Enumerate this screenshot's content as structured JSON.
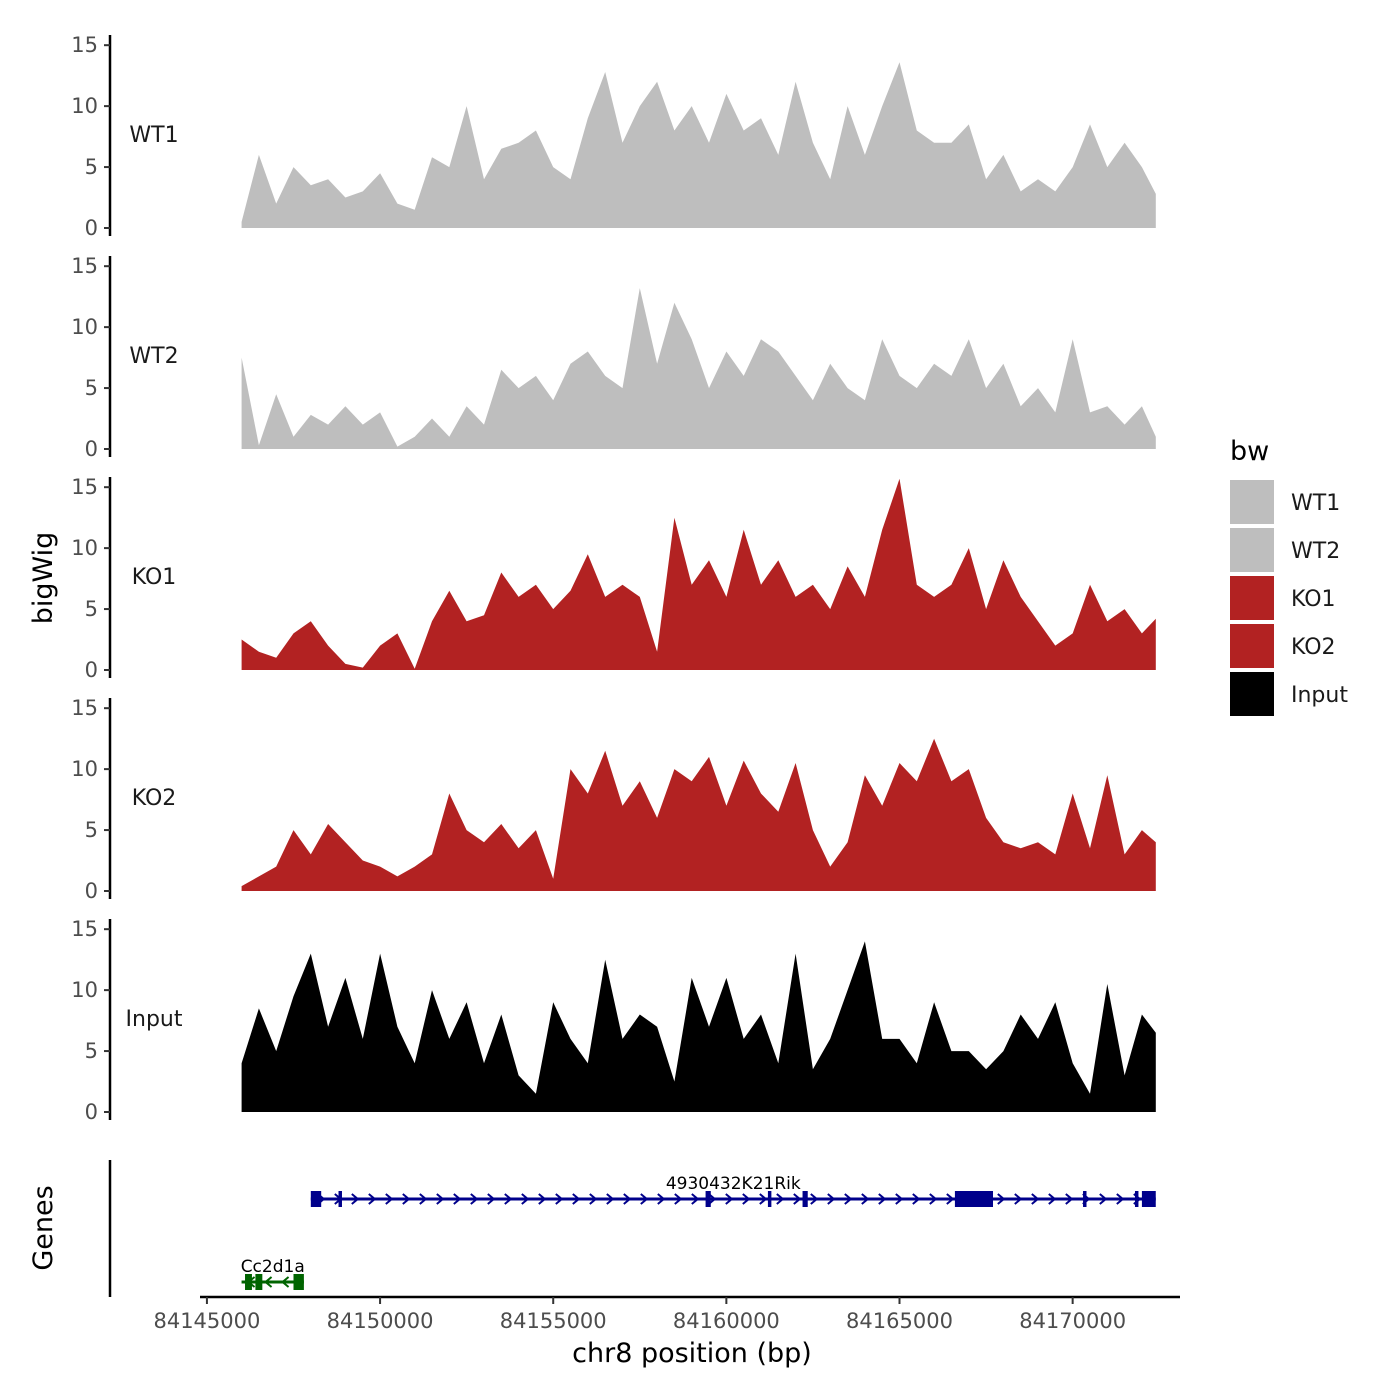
{
  "chart_data": {
    "type": "area",
    "chromosome": "chr8",
    "xlabel": "chr8 position (bp)",
    "ylabel_tracks": "bigWig",
    "ylabel_genes": "Genes",
    "xlim": [
      84144800,
      84173100
    ],
    "x_ticks": [
      84145000,
      84150000,
      84155000,
      84160000,
      84165000,
      84170000
    ],
    "x_tick_labels": [
      "84145000",
      "84150000",
      "84155000",
      "84160000",
      "84165000",
      "84170000"
    ],
    "ylim": [
      0,
      16
    ],
    "y_ticks": [
      0,
      5,
      10,
      15
    ],
    "y_tick_labels": [
      "0",
      "5",
      "10",
      "15"
    ],
    "legend": {
      "title": "bw",
      "entries": [
        {
          "label": "WT1",
          "color": "#bebebe"
        },
        {
          "label": "WT2",
          "color": "#bebebe"
        },
        {
          "label": "KO1",
          "color": "#b22222"
        },
        {
          "label": "KO2",
          "color": "#b22222"
        },
        {
          "label": "Input",
          "color": "#000000"
        }
      ]
    },
    "tracks": [
      {
        "name": "WT1",
        "color": "#bebebe",
        "x": [
          84146000,
          84146500,
          84147000,
          84147500,
          84148000,
          84148500,
          84149000,
          84149500,
          84150000,
          84150500,
          84151000,
          84151500,
          84152000,
          84152500,
          84153000,
          84153500,
          84154000,
          84154500,
          84155000,
          84155500,
          84156000,
          84156500,
          84157000,
          84157500,
          84158000,
          84158500,
          84159000,
          84159500,
          84160000,
          84160500,
          84161000,
          84161500,
          84162000,
          84162500,
          84163000,
          84163500,
          84164000,
          84164500,
          84165000,
          84165500,
          84166000,
          84166500,
          84167000,
          84167500,
          84168000,
          84168500,
          84169000,
          84169500,
          84170000,
          84170500,
          84171000,
          84171500,
          84172000,
          84172400
        ],
        "values": [
          0.5,
          6,
          2,
          5,
          3.5,
          4,
          2.5,
          3,
          4.5,
          2,
          1.5,
          5.8,
          5,
          10,
          4,
          6.5,
          7,
          8,
          5,
          4,
          9,
          12.8,
          7,
          10,
          12,
          8,
          10,
          7,
          11,
          8,
          9,
          6,
          12,
          7,
          4,
          10,
          6,
          10,
          13.6,
          8,
          7,
          7,
          8.5,
          4,
          6,
          3,
          4,
          3,
          5,
          8.5,
          5,
          7,
          5,
          2.8
        ]
      },
      {
        "name": "WT2",
        "color": "#bebebe",
        "x": [
          84146000,
          84146500,
          84147000,
          84147500,
          84148000,
          84148500,
          84149000,
          84149500,
          84150000,
          84150500,
          84151000,
          84151500,
          84152000,
          84152500,
          84153000,
          84153500,
          84154000,
          84154500,
          84155000,
          84155500,
          84156000,
          84156500,
          84157000,
          84157500,
          84158000,
          84158500,
          84159000,
          84159500,
          84160000,
          84160500,
          84161000,
          84161500,
          84162000,
          84162500,
          84163000,
          84163500,
          84164000,
          84164500,
          84165000,
          84165500,
          84166000,
          84166500,
          84167000,
          84167500,
          84168000,
          84168500,
          84169000,
          84169500,
          84170000,
          84170500,
          84171000,
          84171500,
          84172000,
          84172400
        ],
        "values": [
          7.5,
          0.3,
          4.5,
          1,
          2.8,
          2,
          3.5,
          2,
          3,
          0.2,
          1,
          2.5,
          1,
          3.5,
          2,
          6.5,
          5,
          6,
          4,
          7,
          8,
          6,
          5,
          13.2,
          7,
          12,
          9,
          5,
          8,
          6,
          9,
          8,
          6,
          4,
          7,
          5,
          4,
          9,
          6,
          5,
          7,
          6,
          9,
          5,
          7,
          3.5,
          5,
          3,
          9,
          3,
          3.5,
          2,
          3.5,
          1
        ]
      },
      {
        "name": "KO1",
        "color": "#b22222",
        "x": [
          84146000,
          84146500,
          84147000,
          84147500,
          84148000,
          84148500,
          84149000,
          84149500,
          84150000,
          84150500,
          84151000,
          84151500,
          84152000,
          84152500,
          84153000,
          84153500,
          84154000,
          84154500,
          84155000,
          84155500,
          84156000,
          84156500,
          84157000,
          84157500,
          84158000,
          84158500,
          84159000,
          84159500,
          84160000,
          84160500,
          84161000,
          84161500,
          84162000,
          84162500,
          84163000,
          84163500,
          84164000,
          84164500,
          84165000,
          84165500,
          84166000,
          84166500,
          84167000,
          84167500,
          84168000,
          84168500,
          84169000,
          84169500,
          84170000,
          84170500,
          84171000,
          84171500,
          84172000,
          84172400
        ],
        "values": [
          2.5,
          1.5,
          1,
          3,
          4,
          2,
          0.5,
          0.2,
          2,
          3,
          0.1,
          4,
          6.5,
          4,
          4.5,
          8,
          6,
          7,
          5,
          6.5,
          9.5,
          6,
          7,
          6,
          1.5,
          12.5,
          7,
          9,
          6,
          11.5,
          7,
          9,
          6,
          7,
          5,
          8.5,
          6,
          11.5,
          15.7,
          7,
          6,
          7,
          10,
          5,
          9,
          6,
          4,
          2,
          3,
          7,
          4,
          5,
          3,
          4.2
        ]
      },
      {
        "name": "KO2",
        "color": "#b22222",
        "x": [
          84146000,
          84146500,
          84147000,
          84147500,
          84148000,
          84148500,
          84149000,
          84149500,
          84150000,
          84150500,
          84151000,
          84151500,
          84152000,
          84152500,
          84153000,
          84153500,
          84154000,
          84154500,
          84155000,
          84155500,
          84156000,
          84156500,
          84157000,
          84157500,
          84158000,
          84158500,
          84159000,
          84159500,
          84160000,
          84160500,
          84161000,
          84161500,
          84162000,
          84162500,
          84163000,
          84163500,
          84164000,
          84164500,
          84165000,
          84165500,
          84166000,
          84166500,
          84167000,
          84167500,
          84168000,
          84168500,
          84169000,
          84169500,
          84170000,
          84170500,
          84171000,
          84171500,
          84172000,
          84172400
        ],
        "values": [
          0.4,
          1.2,
          2,
          5,
          3,
          5.5,
          4,
          2.5,
          2,
          1.2,
          2,
          3,
          8,
          5,
          4,
          5.5,
          3.5,
          5,
          1,
          10,
          8,
          11.5,
          7,
          9,
          6,
          10,
          9,
          11,
          7,
          10.7,
          8,
          6.5,
          10.5,
          5,
          2,
          4,
          9.5,
          7,
          10.5,
          9,
          12.5,
          9,
          10,
          6,
          4,
          3.5,
          4,
          3,
          8,
          3.5,
          9.5,
          3,
          5,
          4
        ]
      },
      {
        "name": "Input",
        "color": "#000000",
        "x": [
          84146000,
          84146500,
          84147000,
          84147500,
          84148000,
          84148500,
          84149000,
          84149500,
          84150000,
          84150500,
          84151000,
          84151500,
          84152000,
          84152500,
          84153000,
          84153500,
          84154000,
          84154500,
          84155000,
          84155500,
          84156000,
          84156500,
          84157000,
          84157500,
          84158000,
          84158500,
          84159000,
          84159500,
          84160000,
          84160500,
          84161000,
          84161500,
          84162000,
          84162500,
          84163000,
          84163500,
          84164000,
          84164500,
          84165000,
          84165500,
          84166000,
          84166500,
          84167000,
          84167500,
          84168000,
          84168500,
          84169000,
          84169500,
          84170000,
          84170500,
          84171000,
          84171500,
          84172000,
          84172400
        ],
        "values": [
          4,
          8.5,
          5,
          9.5,
          13,
          7,
          11,
          6,
          13,
          7,
          4,
          10,
          6,
          9,
          4,
          8,
          3,
          1.5,
          9,
          6,
          4,
          12.5,
          6,
          8,
          7,
          2.5,
          11,
          7,
          11,
          6,
          8,
          4,
          13,
          3.5,
          6,
          10,
          14,
          6,
          6,
          4,
          9,
          5,
          5,
          3.5,
          5,
          8,
          6,
          9,
          4,
          1.5,
          10.5,
          3,
          8,
          6.5
        ]
      }
    ],
    "genes": [
      {
        "name": "4930432K21Rik",
        "strand": "+",
        "start": 84148000,
        "end": 84172400,
        "color": "#00008b",
        "exons": [
          [
            84148000,
            84148300
          ],
          [
            84148800,
            84148900
          ],
          [
            84159400,
            84159550
          ],
          [
            84161200,
            84161300
          ],
          [
            84162200,
            84162350
          ],
          [
            84166600,
            84167700
          ],
          [
            84170300,
            84170400
          ],
          [
            84171800,
            84171900
          ],
          [
            84172000,
            84172400
          ]
        ]
      },
      {
        "name": "Cc2d1a",
        "strand": "-",
        "start": 84146000,
        "end": 84147800,
        "color": "#006400",
        "exons": [
          [
            84146100,
            84146300
          ],
          [
            84146400,
            84146600
          ],
          [
            84147500,
            84147800
          ]
        ]
      }
    ]
  }
}
